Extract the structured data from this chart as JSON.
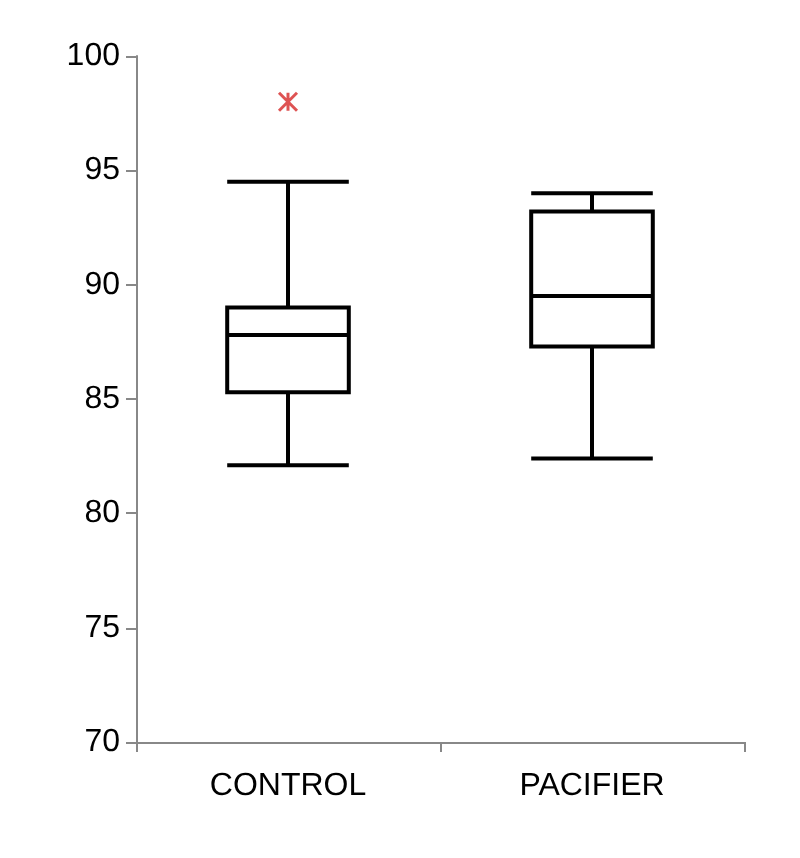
{
  "chart_data": {
    "type": "box",
    "categories": [
      "CONTROL",
      "PACIFIER"
    ],
    "series": [
      {
        "color": "#000000",
        "boxes": [
          {
            "low": 82.1,
            "q1": 85.3,
            "median": 87.8,
            "q3": 89.0,
            "high": 94.5
          },
          {
            "low": 82.4,
            "q1": 87.3,
            "median": 89.5,
            "q3": 93.2,
            "high": 94.0
          }
        ]
      },
      {
        "type": "scatter",
        "color": "#d62828",
        "x": [
          "CONTROL"
        ],
        "values": [
          98.0
        ]
      }
    ],
    "ylim": [
      70,
      100
    ],
    "yticks": [
      70,
      75,
      80,
      85,
      90,
      95,
      100
    ],
    "grid": false,
    "marker": "cross"
  }
}
